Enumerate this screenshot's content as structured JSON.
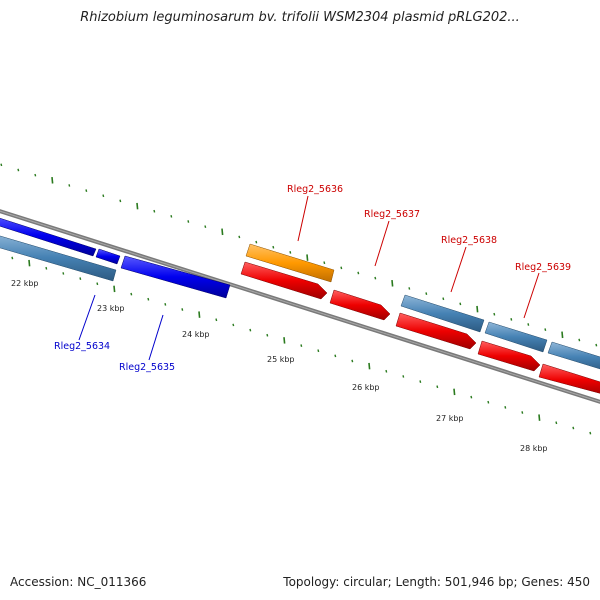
{
  "title": "Rhizobium leguminosarum bv. trifolii WSM2304 plasmid pRLG202...",
  "footer": {
    "accession": "Accession: NC_011366",
    "topology": "Topology: circular; Length: 501,946 bp; Genes: 450"
  },
  "colors": {
    "backbone": "#808080",
    "tick": "#2a7a1e",
    "gene_steelblue": "#4682b4",
    "gene_blue": "#0000ee",
    "gene_orange": "#ff9900",
    "gene_red": "#ee0000",
    "label_blue": "#0000cc",
    "label_red": "#cc0000"
  },
  "kbp_labels": [
    "22 kbp",
    "23 kbp",
    "24 kbp",
    "25 kbp",
    "26 kbp",
    "27 kbp",
    "28 kbp"
  ],
  "gene_labels": {
    "blue": [
      "Rleg2_5634",
      "Rleg2_5635"
    ],
    "red": [
      "Rleg2_5636",
      "Rleg2_5637",
      "Rleg2_5638",
      "Rleg2_5639"
    ]
  }
}
